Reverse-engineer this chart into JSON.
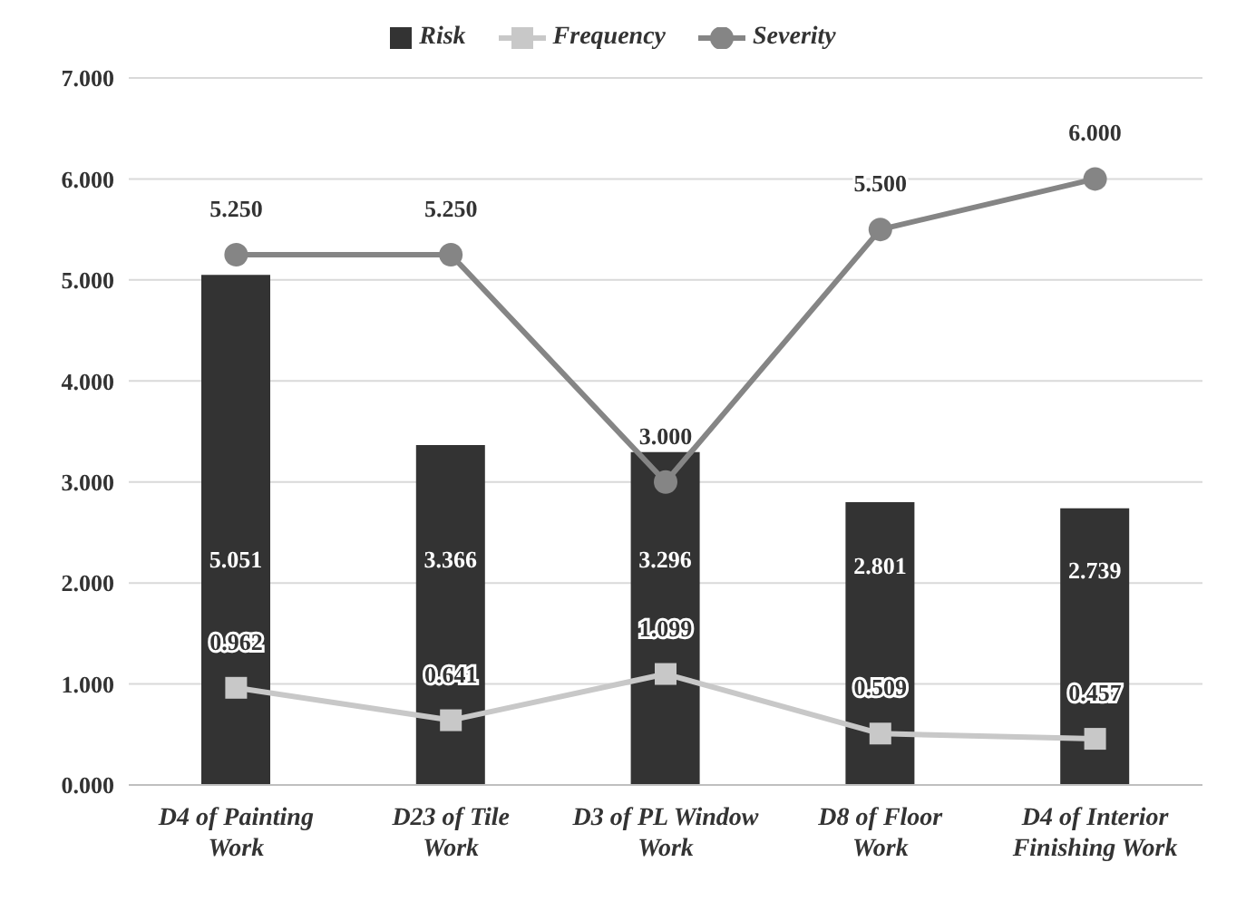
{
  "chart_data": {
    "type": "bar",
    "categories": [
      "D4 of Painting Work",
      "D23 of Tile Work",
      "D3 of PL Window Work",
      "D8 of Floor Work",
      "D4 of Interior Finishing Work"
    ],
    "series": [
      {
        "name": "Risk",
        "type": "bar",
        "color": "#333333",
        "values": [
          5.051,
          3.366,
          3.296,
          2.801,
          2.739
        ],
        "value_labels": [
          "5.051",
          "3.366",
          "3.296",
          "2.801",
          "2.739"
        ]
      },
      {
        "name": "Frequency",
        "type": "line",
        "color": "#c8c8c8",
        "marker": "square",
        "values": [
          0.962,
          0.641,
          1.099,
          0.509,
          0.457
        ],
        "value_labels": [
          "0.962",
          "0.641",
          "1.099",
          "0.509",
          "0.457"
        ]
      },
      {
        "name": "Severity",
        "type": "line",
        "color": "#858585",
        "marker": "circle",
        "values": [
          5.25,
          5.25,
          3.0,
          5.5,
          6.0
        ],
        "value_labels": [
          "5.250",
          "5.250",
          "3.000",
          "5.500",
          "6.000"
        ]
      }
    ],
    "ylim": [
      0,
      7
    ],
    "yticks": [
      {
        "value": 0,
        "label": "0.000"
      },
      {
        "value": 1,
        "label": "1.000"
      },
      {
        "value": 2,
        "label": "2.000"
      },
      {
        "value": 3,
        "label": "3.000"
      },
      {
        "value": 4,
        "label": "4.000"
      },
      {
        "value": 5,
        "label": "5.000"
      },
      {
        "value": 6,
        "label": "6.000"
      },
      {
        "value": 7,
        "label": "7.000"
      }
    ],
    "grid": "y",
    "legend": "top",
    "line_style": "solid"
  }
}
